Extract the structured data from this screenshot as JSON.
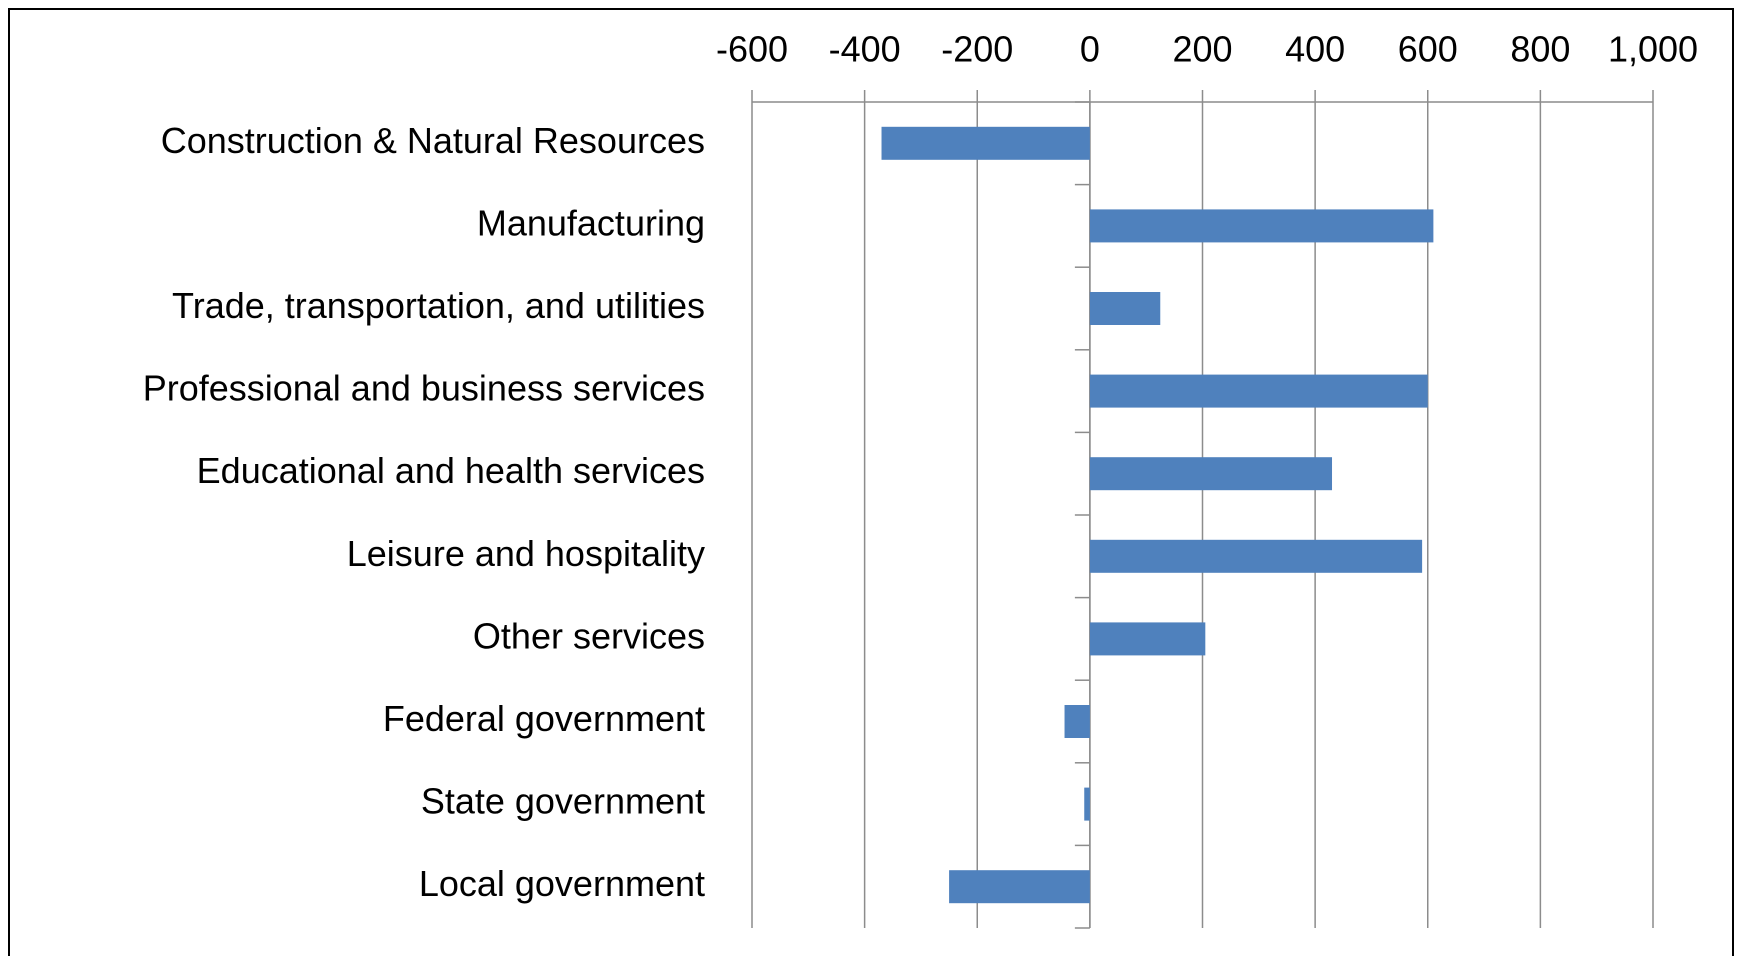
{
  "chart_data": {
    "type": "hbar",
    "categories": [
      "Construction & Natural Resources",
      "Manufacturing",
      "Trade, transportation, and utilities",
      "Professional and business services",
      "Educational and health services",
      "Leisure and hospitality",
      "Other services",
      "Federal government",
      "State government",
      "Local government"
    ],
    "values": [
      -370,
      610,
      125,
      600,
      430,
      590,
      205,
      -45,
      -10,
      -250
    ],
    "color": "#4f81bd",
    "xlim": [
      -600,
      1000
    ],
    "xticks": [
      -600,
      -400,
      -200,
      0,
      200,
      400,
      600,
      800,
      {
        "value": 1000,
        "label": "1,000"
      }
    ],
    "grid": true
  }
}
